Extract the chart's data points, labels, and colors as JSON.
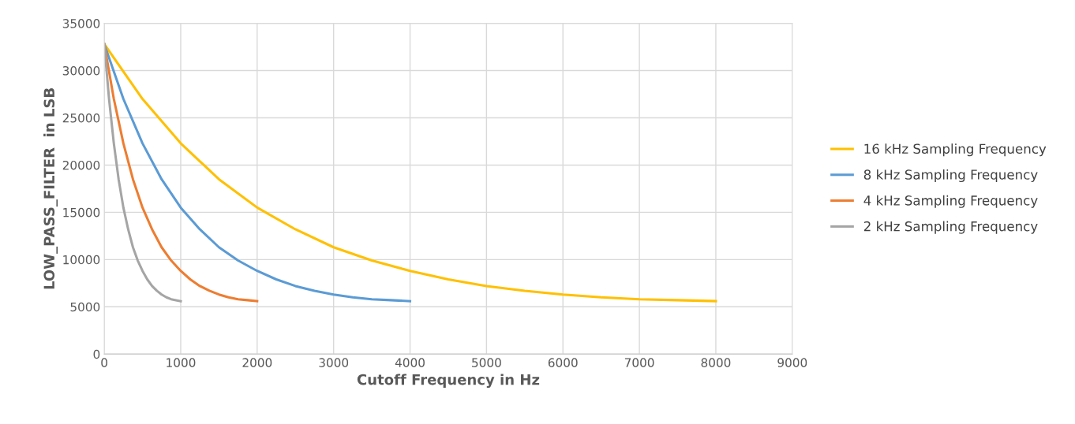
{
  "chart_data": {
    "type": "line",
    "xlabel": "Cutoff Frequency in Hz",
    "ylabel": "LOW_PASS_FILTER  in LSB",
    "xlim": [
      0,
      9000
    ],
    "xticks": [
      0,
      1000,
      2000,
      3000,
      4000,
      5000,
      6000,
      7000,
      8000,
      9000
    ],
    "ylim": [
      0,
      35000
    ],
    "yticks": [
      0,
      5000,
      10000,
      15000,
      20000,
      25000,
      30000,
      35000
    ],
    "grid": true,
    "legend": "right",
    "marker": "none",
    "line_style": "solid",
    "series": [
      {
        "name": "16 kHz Sampling Frequency",
        "color": "#ffc000",
        "x": [
          0,
          500,
          1000,
          1500,
          2000,
          2500,
          3000,
          3500,
          4000,
          4500,
          5000,
          5500,
          6000,
          6500,
          7000,
          7500,
          8000
        ],
        "values": [
          32800,
          27000,
          22300,
          18500,
          15500,
          13200,
          11300,
          9900,
          8800,
          7900,
          7200,
          6700,
          6300,
          6000,
          5800,
          5700,
          5600
        ]
      },
      {
        "name": "8 kHz Sampling Frequency",
        "color": "#5b9bd5",
        "x": [
          0,
          250,
          500,
          750,
          1000,
          1250,
          1500,
          1750,
          2000,
          2250,
          2500,
          2750,
          3000,
          3250,
          3500,
          3750,
          4000
        ],
        "values": [
          32800,
          27000,
          22300,
          18500,
          15500,
          13200,
          11300,
          9900,
          8800,
          7900,
          7200,
          6700,
          6300,
          6000,
          5800,
          5700,
          5600
        ]
      },
      {
        "name": "4 kHz Sampling Frequency",
        "color": "#ed7d31",
        "x": [
          0,
          125,
          250,
          375,
          500,
          625,
          750,
          875,
          1000,
          1125,
          1250,
          1375,
          1500,
          1625,
          1750,
          1875,
          2000
        ],
        "values": [
          32800,
          27000,
          22300,
          18500,
          15500,
          13200,
          11300,
          9900,
          8800,
          7900,
          7200,
          6700,
          6300,
          6000,
          5800,
          5700,
          5600
        ]
      },
      {
        "name": "2 kHz Sampling Frequency",
        "color": "#a5a5a5",
        "x": [
          0,
          62.5,
          125,
          187.5,
          250,
          312.5,
          375,
          437.5,
          500,
          562.5,
          625,
          687.5,
          750,
          812.5,
          875,
          937.5,
          1000
        ],
        "values": [
          32800,
          27000,
          22300,
          18500,
          15500,
          13200,
          11300,
          9900,
          8800,
          7900,
          7200,
          6700,
          6300,
          6000,
          5800,
          5700,
          5600
        ]
      }
    ]
  }
}
